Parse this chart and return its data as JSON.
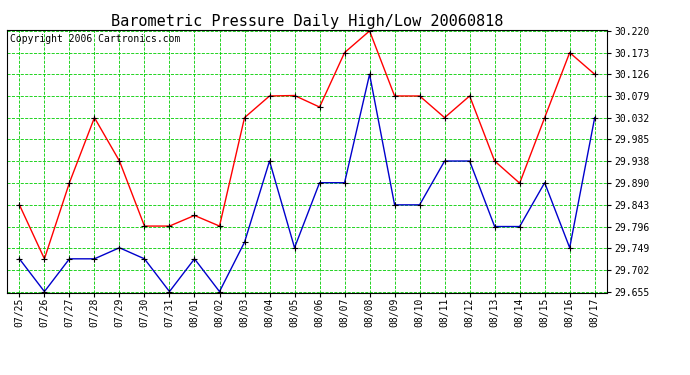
{
  "title": "Barometric Pressure Daily High/Low 20060818",
  "copyright": "Copyright 2006 Cartronics.com",
  "labels": [
    "07/25",
    "07/26",
    "07/27",
    "07/28",
    "07/29",
    "07/30",
    "07/31",
    "08/01",
    "08/02",
    "08/03",
    "08/04",
    "08/05",
    "08/06",
    "08/07",
    "08/08",
    "08/09",
    "08/10",
    "08/11",
    "08/12",
    "08/13",
    "08/14",
    "08/15",
    "08/16",
    "08/17"
  ],
  "high": [
    29.843,
    29.726,
    29.891,
    30.032,
    29.938,
    29.797,
    29.797,
    29.82,
    29.797,
    30.032,
    30.079,
    30.08,
    30.055,
    30.173,
    30.22,
    30.079,
    30.079,
    30.032,
    30.079,
    29.938,
    29.89,
    30.032,
    30.173,
    30.126
  ],
  "low": [
    29.726,
    29.655,
    29.726,
    29.726,
    29.75,
    29.726,
    29.655,
    29.726,
    29.655,
    29.762,
    29.938,
    29.75,
    29.891,
    29.891,
    30.126,
    29.843,
    29.843,
    29.938,
    29.938,
    29.796,
    29.796,
    29.891,
    29.75,
    30.032
  ],
  "ylim": [
    29.655,
    30.22
  ],
  "yticks": [
    29.655,
    29.702,
    29.749,
    29.796,
    29.843,
    29.89,
    29.938,
    29.985,
    30.032,
    30.079,
    30.126,
    30.173,
    30.22
  ],
  "high_color": "#ff0000",
  "low_color": "#0000cc",
  "bg_color": "#ffffff",
  "grid_color": "#00cc00",
  "title_fontsize": 11,
  "tick_fontsize": 7,
  "copyright_fontsize": 7
}
